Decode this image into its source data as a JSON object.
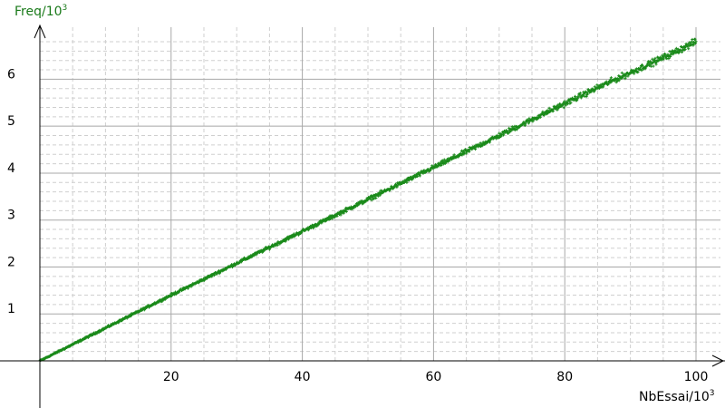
{
  "chart_data": {
    "type": "scatter",
    "xlabel": "NbEssai/10",
    "xlabel_sup": "3",
    "ylabel": "Freq/10",
    "ylabel_sup": "3",
    "xlim": [
      0,
      100
    ],
    "ylim": [
      0,
      6.8
    ],
    "x_ticks": [
      20,
      40,
      60,
      80,
      100
    ],
    "y_ticks": [
      1,
      2,
      3,
      4,
      5,
      6
    ],
    "x_minor_step": 5,
    "y_minor_step": 0.2,
    "grid": true,
    "legend": "none",
    "colors": {
      "points": "#1a8a1a",
      "ylabel": "#1a7a1a",
      "xlabel": "#000000",
      "major_grid": "#a8a8a8",
      "minor_grid": "#cfcfcf",
      "axis": "#000000"
    },
    "series": [
      {
        "x": [
          0,
          5,
          10,
          15,
          20,
          25,
          30,
          35,
          40,
          45,
          50,
          55,
          60,
          65,
          70,
          75,
          80,
          85,
          90,
          95,
          100
        ],
        "y": [
          0,
          0.35,
          0.7,
          1.05,
          1.4,
          1.74,
          2.08,
          2.42,
          2.76,
          3.1,
          3.44,
          3.78,
          4.12,
          4.46,
          4.8,
          5.14,
          5.48,
          5.82,
          6.14,
          6.46,
          6.8
        ]
      }
    ]
  }
}
